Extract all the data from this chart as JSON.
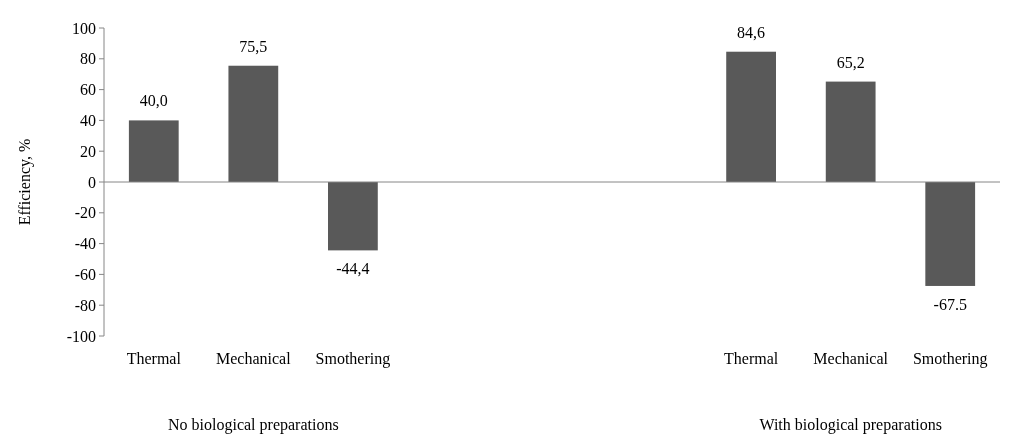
{
  "chart_data": {
    "type": "bar",
    "ylabel": "Efficiency, %",
    "categories": [
      "Thermal",
      "Mechanical",
      "Smothering",
      null,
      null,
      null,
      "Thermal",
      "Mechanical",
      "Smothering"
    ],
    "values": [
      40.0,
      75.5,
      -44.4,
      null,
      null,
      null,
      84.6,
      65.2,
      -67.5
    ],
    "value_labels": [
      "40,0",
      "75,5",
      "-44,4",
      null,
      null,
      null,
      "84,6",
      "65,2",
      "-67.5"
    ],
    "color": "#595959",
    "ylim": [
      -100,
      100
    ],
    "yticks": [
      -100,
      -80,
      -60,
      -40,
      -20,
      0,
      20,
      40,
      60,
      80,
      100
    ],
    "annotations": [
      "No biological preparations",
      "With biological preparations"
    ]
  }
}
